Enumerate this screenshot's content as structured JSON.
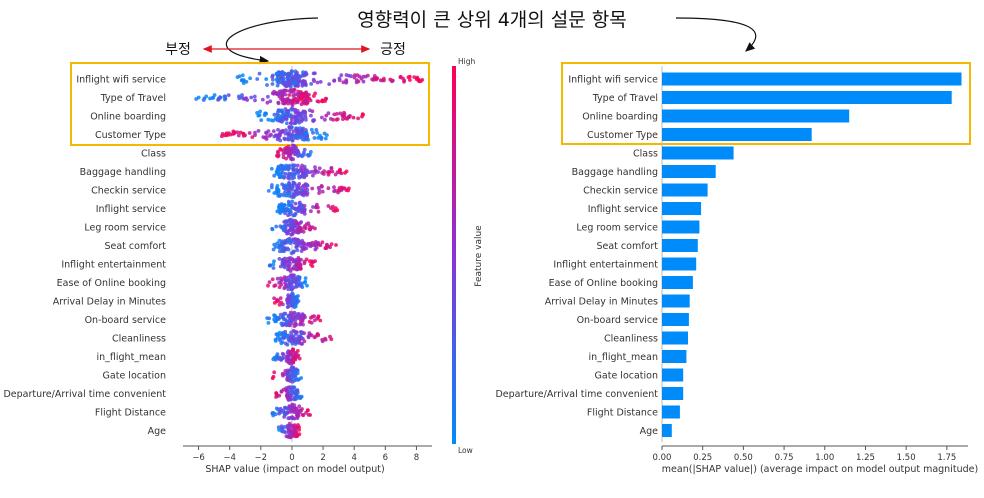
{
  "annotation": {
    "title": "영향력이 큰 상위 4개의 설문 항목",
    "negative_label": "부정",
    "positive_label": "긍정",
    "highlight_color": "#f5b800",
    "arrow_color": "#e0141e"
  },
  "chart_data": [
    {
      "type": "scatter",
      "subtype": "beeswarm",
      "features": [
        "Inflight wifi service",
        "Type of Travel",
        "Online boarding",
        "Customer Type",
        "Class",
        "Baggage handling",
        "Checkin service",
        "Inflight service",
        "Leg room service",
        "Seat comfort",
        "Inflight entertainment",
        "Ease of Online booking",
        "Arrival Delay in Minutes",
        "On-board service",
        "Cleanliness",
        "in_flight_mean",
        "Gate location",
        "Departure/Arrival time convenient",
        "Flight Distance",
        "Age"
      ],
      "xlabel": "SHAP value (impact on model output)",
      "xlim": [
        -7,
        9
      ],
      "xticks": [
        -6,
        -4,
        -2,
        0,
        2,
        4,
        6,
        8
      ],
      "shap_ranges": [
        [
          -3.5,
          8.6
        ],
        [
          -6.2,
          2.3
        ],
        [
          -2.3,
          4.6
        ],
        [
          -4.5,
          2.3
        ],
        [
          -1.0,
          1.3
        ],
        [
          -1.5,
          3.7
        ],
        [
          -1.5,
          3.8
        ],
        [
          -1.0,
          3.2
        ],
        [
          -1.4,
          1.8
        ],
        [
          -1.3,
          3.0
        ],
        [
          -1.6,
          1.5
        ],
        [
          -1.6,
          1.0
        ],
        [
          -1.2,
          0.5
        ],
        [
          -1.6,
          2.0
        ],
        [
          -1.2,
          2.8
        ],
        [
          -1.2,
          0.5
        ],
        [
          -1.3,
          0.6
        ],
        [
          -1.1,
          0.7
        ],
        [
          -1.3,
          1.2
        ],
        [
          -1.0,
          0.5
        ]
      ],
      "colorbar": {
        "label": "Feature value",
        "high": "High",
        "low": "Low",
        "low_color": "#008bfb",
        "high_color": "#ff0052"
      }
    },
    {
      "type": "bar",
      "orientation": "horizontal",
      "categories": [
        "Inflight wifi service",
        "Type of Travel",
        "Online boarding",
        "Customer Type",
        "Class",
        "Baggage handling",
        "Checkin service",
        "Inflight service",
        "Leg room service",
        "Seat comfort",
        "Inflight entertainment",
        "Ease of Online booking",
        "Arrival Delay in Minutes",
        "On-board service",
        "Cleanliness",
        "in_flight_mean",
        "Gate location",
        "Departure/Arrival time convenient",
        "Flight Distance",
        "Age"
      ],
      "values": [
        1.84,
        1.78,
        1.15,
        0.92,
        0.44,
        0.33,
        0.28,
        0.24,
        0.23,
        0.22,
        0.21,
        0.19,
        0.17,
        0.165,
        0.16,
        0.15,
        0.13,
        0.13,
        0.11,
        0.06
      ],
      "xlabel": "mean(|SHAP value|) (average impact on model output magnitude)",
      "xlim": [
        0,
        1.88
      ],
      "xticks": [
        "0.00",
        "0.25",
        "0.50",
        "0.75",
        "1.00",
        "1.25",
        "1.50",
        "1.75"
      ],
      "bar_color": "#008bfb"
    }
  ]
}
